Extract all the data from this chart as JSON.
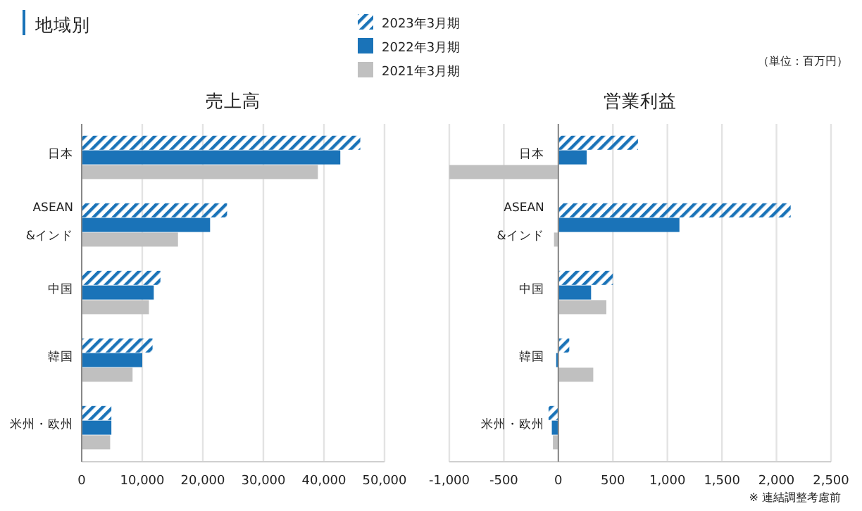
{
  "chart_data": [
    {
      "type": "bar",
      "orientation": "horizontal",
      "title": "地域別",
      "subtitle": "売上高",
      "legend": "top",
      "grid": "x",
      "categories": [
        "日本",
        "ASEAN &インド",
        "中国",
        "韓国",
        "米州・欧州"
      ],
      "series": [
        {
          "name": "2023年3月期",
          "color": "#1a73b8",
          "values": [
            46000,
            24000,
            13000,
            11700,
            4900
          ]
        },
        {
          "name": "2022年3月期",
          "color": "#1a73b8",
          "values": [
            42700,
            21200,
            11900,
            10000,
            4900
          ]
        },
        {
          "name": "2021年3月期",
          "color": "#c0c0c0",
          "values": [
            39000,
            15900,
            11100,
            8400,
            4700
          ]
        }
      ],
      "xlim": [
        0,
        50000
      ],
      "xticks": [
        0,
        {
          "value": 10000,
          "label": "10,000"
        },
        {
          "value": 20000,
          "label": "20,000"
        },
        {
          "value": 30000,
          "label": "30,000"
        },
        {
          "value": 40000,
          "label": "40,000"
        },
        {
          "value": 50000,
          "label": "50,000"
        }
      ]
    },
    {
      "type": "bar",
      "orientation": "horizontal",
      "subtitle": "営業利益",
      "grid": "x",
      "annotations": [
        "（単位：百万円）",
        "※ 連結調整考慮前"
      ],
      "categories": [
        "日本",
        "ASEAN &インド",
        "中国",
        "韓国",
        "米州・欧州"
      ],
      "series": [
        {
          "color": "#1a73b8",
          "values": [
            730,
            2130,
            500,
            100,
            -90
          ]
        },
        {
          "color": "#1a73b8",
          "values": [
            260,
            1110,
            300,
            -20,
            -60
          ]
        },
        {
          "color": "#c0c0c0",
          "values": [
            -1000,
            -40,
            440,
            320,
            -50
          ]
        }
      ],
      "xlim": [
        -1000,
        2500
      ],
      "xticks": [
        {
          "value": -1000,
          "label": "-1,000"
        },
        -500,
        0,
        500,
        {
          "value": 1000,
          "label": "1,000"
        },
        {
          "value": 1500,
          "label": "1,500"
        },
        {
          "value": 2000,
          "label": "2,000"
        },
        {
          "value": 2500,
          "label": "2,500"
        }
      ]
    }
  ]
}
